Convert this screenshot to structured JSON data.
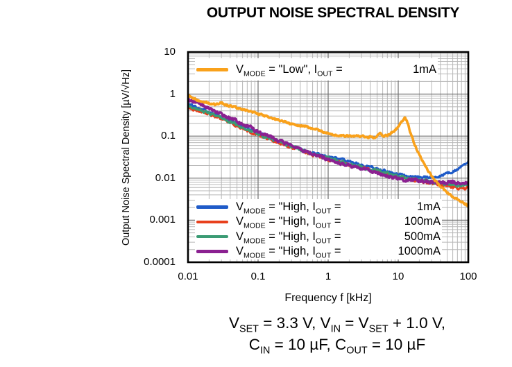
{
  "title": "OUTPUT NOISE SPECTRAL DENSITY",
  "caption": {
    "line1": "V_{SET} = 3.3 V, V_{IN} = V_{SET} + 1.0 V,",
    "line2": "C_{IN} = 10 µF, C_{OUT} = 10 µF"
  },
  "chart_data": {
    "type": "line",
    "title": "OUTPUT NOISE SPECTRAL DENSITY",
    "xlabel": "Frequency f [kHz]",
    "ylabel": "Output Noise Spectral Density [µV/√Hz]",
    "xscale": "log",
    "yscale": "log",
    "xlim": [
      0.01,
      100
    ],
    "ylim": [
      0.0001,
      10
    ],
    "x_ticks": [
      {
        "value": 0.01,
        "label": "0.01"
      },
      {
        "value": 0.1,
        "label": "0.1"
      },
      {
        "value": 1,
        "label": "1"
      },
      {
        "value": 10,
        "label": "10"
      },
      {
        "value": 100,
        "label": "100"
      }
    ],
    "y_ticks": [
      {
        "value": 10,
        "label": "10"
      },
      {
        "value": 1,
        "label": "1"
      },
      {
        "value": 0.1,
        "label": "0.1"
      },
      {
        "value": 0.01,
        "label": "0.01"
      },
      {
        "value": 0.001,
        "label": "0.001"
      },
      {
        "value": 0.0001,
        "label": "0.0001"
      }
    ],
    "grid": {
      "major_color": "#6f6f6f",
      "minor_color": "#b7b7b7",
      "show_minor": true
    },
    "border_color": "#000000",
    "legend_top": [
      {
        "color": "#F9A11B",
        "label": "V_{MODE} = \"Low\", I_{OUT} =",
        "value": "1mA"
      }
    ],
    "legend_bottom": [
      {
        "color": "#1F5BC8",
        "label": "V_{MODE} = \"High, I_{OUT} =",
        "value": "1mA"
      },
      {
        "color": "#E8401C",
        "label": "V_{MODE} = \"High, I_{OUT} =",
        "value": "100mA"
      },
      {
        "color": "#3B9B74",
        "label": "V_{MODE} = \"High, I_{OUT} =",
        "value": "500mA"
      },
      {
        "color": "#8B2191",
        "label": "V_{MODE} = \"High, I_{OUT} =",
        "value": "1000mA"
      }
    ],
    "series": [
      {
        "name": "V_MODE = \"High, I_OUT = 1mA",
        "color": "#1F5BC8",
        "width": 3.0,
        "noise": 0.027,
        "seed": 101,
        "points": [
          [
            0.01,
            0.58
          ],
          [
            0.015,
            0.46
          ],
          [
            0.02,
            0.38
          ],
          [
            0.03,
            0.28
          ],
          [
            0.05,
            0.2
          ],
          [
            0.07,
            0.155
          ],
          [
            0.1,
            0.12
          ],
          [
            0.15,
            0.092
          ],
          [
            0.2,
            0.075
          ],
          [
            0.3,
            0.058
          ],
          [
            0.5,
            0.044
          ],
          [
            0.7,
            0.038
          ],
          [
            1,
            0.033
          ],
          [
            1.5,
            0.028
          ],
          [
            2,
            0.025
          ],
          [
            3,
            0.021
          ],
          [
            5,
            0.017
          ],
          [
            7,
            0.0145
          ],
          [
            10,
            0.0125
          ],
          [
            15,
            0.011
          ],
          [
            20,
            0.0105
          ],
          [
            30,
            0.0105
          ],
          [
            40,
            0.0115
          ],
          [
            50,
            0.013
          ],
          [
            60,
            0.0145
          ],
          [
            70,
            0.016
          ],
          [
            80,
            0.019
          ],
          [
            90,
            0.022
          ],
          [
            100,
            0.026
          ]
        ]
      },
      {
        "name": "V_MODE = \"High, I_OUT = 100mA",
        "color": "#E8401C",
        "width": 3.0,
        "noise": 0.03,
        "seed": 202,
        "points": [
          [
            0.01,
            0.48
          ],
          [
            0.02,
            0.33
          ],
          [
            0.05,
            0.175
          ],
          [
            0.1,
            0.105
          ],
          [
            0.2,
            0.068
          ],
          [
            0.5,
            0.04
          ],
          [
            1,
            0.028
          ],
          [
            2,
            0.021
          ],
          [
            5,
            0.0145
          ],
          [
            10,
            0.0105
          ],
          [
            20,
            0.0085
          ],
          [
            30,
            0.0075
          ],
          [
            50,
            0.0065
          ],
          [
            70,
            0.0058
          ],
          [
            100,
            0.0058
          ]
        ]
      },
      {
        "name": "V_MODE = \"High, I_OUT = 500mA",
        "color": "#3B9B74",
        "width": 3.0,
        "noise": 0.03,
        "seed": 303,
        "points": [
          [
            0.01,
            0.52
          ],
          [
            0.02,
            0.35
          ],
          [
            0.05,
            0.185
          ],
          [
            0.1,
            0.11
          ],
          [
            0.2,
            0.072
          ],
          [
            0.5,
            0.042
          ],
          [
            1,
            0.03
          ],
          [
            2,
            0.022
          ],
          [
            5,
            0.015
          ],
          [
            10,
            0.011
          ],
          [
            20,
            0.009
          ],
          [
            30,
            0.008
          ],
          [
            50,
            0.0072
          ],
          [
            70,
            0.0068
          ],
          [
            100,
            0.0068
          ]
        ]
      },
      {
        "name": "V_MODE = \"High, I_OUT = 1000mA",
        "color": "#8B2191",
        "width": 3.6,
        "noise": 0.036,
        "seed": 404,
        "points": [
          [
            0.01,
            0.74
          ],
          [
            0.015,
            0.58
          ],
          [
            0.02,
            0.44
          ],
          [
            0.03,
            0.33
          ],
          [
            0.05,
            0.23
          ],
          [
            0.07,
            0.175
          ],
          [
            0.1,
            0.125
          ],
          [
            0.15,
            0.095
          ],
          [
            0.2,
            0.076
          ],
          [
            0.3,
            0.058
          ],
          [
            0.5,
            0.042
          ],
          [
            1,
            0.028
          ],
          [
            2,
            0.0195
          ],
          [
            5,
            0.0135
          ],
          [
            10,
            0.0095
          ],
          [
            20,
            0.0085
          ],
          [
            30,
            0.0082
          ],
          [
            50,
            0.008
          ],
          [
            70,
            0.0078
          ],
          [
            100,
            0.0078
          ]
        ]
      },
      {
        "name": "V_MODE = \"Low\", I_OUT = 1mA",
        "color": "#F9A11B",
        "width": 3.6,
        "noise": 0.022,
        "seed": 505,
        "points": [
          [
            0.01,
            0.95
          ],
          [
            0.012,
            0.78
          ],
          [
            0.015,
            0.68
          ],
          [
            0.02,
            0.6
          ],
          [
            0.025,
            0.56
          ],
          [
            0.03,
            0.62
          ],
          [
            0.035,
            0.55
          ],
          [
            0.05,
            0.47
          ],
          [
            0.07,
            0.4
          ],
          [
            0.1,
            0.34
          ],
          [
            0.15,
            0.27
          ],
          [
            0.2,
            0.24
          ],
          [
            0.3,
            0.2
          ],
          [
            0.4,
            0.18
          ],
          [
            0.5,
            0.165
          ],
          [
            0.7,
            0.14
          ],
          [
            1,
            0.115
          ],
          [
            1.3,
            0.105
          ],
          [
            2,
            0.1
          ],
          [
            3,
            0.1
          ],
          [
            4,
            0.095
          ],
          [
            4.5,
            0.09
          ],
          [
            5,
            0.105
          ],
          [
            5.5,
            0.115
          ],
          [
            6,
            0.1
          ],
          [
            7,
            0.105
          ],
          [
            8,
            0.12
          ],
          [
            9,
            0.14
          ],
          [
            10,
            0.17
          ],
          [
            11,
            0.21
          ],
          [
            12,
            0.25
          ],
          [
            12.6,
            0.265
          ],
          [
            13.5,
            0.21
          ],
          [
            15,
            0.12
          ],
          [
            17,
            0.065
          ],
          [
            20,
            0.035
          ],
          [
            25,
            0.018
          ],
          [
            30,
            0.011
          ],
          [
            36,
            0.0078
          ],
          [
            45,
            0.0052
          ],
          [
            60,
            0.0036
          ],
          [
            80,
            0.0027
          ],
          [
            100,
            0.0022
          ]
        ]
      }
    ]
  }
}
